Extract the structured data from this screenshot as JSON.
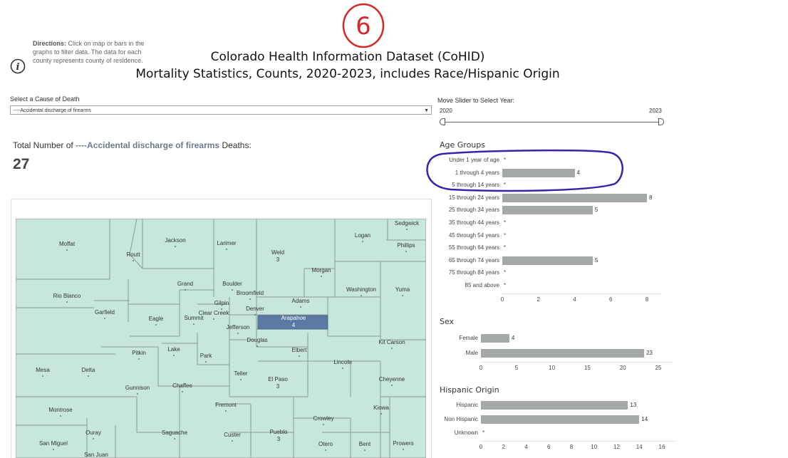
{
  "annotation": {
    "number": "6"
  },
  "directions": {
    "bold": "Directions:",
    "text": " Click on map or bars in the graphs to filter data. The data for each county represents county of residence."
  },
  "header": {
    "title_line1": "Colorado Health Information Dataset (CoHID)",
    "title_line2": "Mortality Statistics, Counts, 2020-2023, includes Race/Hispanic Origin"
  },
  "cause_filter": {
    "label": "Select a Cause of Death",
    "value": "----Accidental discharge of firearms"
  },
  "year_slider": {
    "label": "Move Slider to Select Year:",
    "min": "2020",
    "max": "2023"
  },
  "total": {
    "prefix": "Total Number of ",
    "cause": "----Accidental discharge of firearms",
    "suffix": " Deaths:",
    "count": "27"
  },
  "map": {
    "highlighted_county": "Arapahoe",
    "counties": [
      {
        "name": "Moffat",
        "value": ""
      },
      {
        "name": "Routt",
        "value": ""
      },
      {
        "name": "Jackson",
        "value": ""
      },
      {
        "name": "Larimer",
        "value": ""
      },
      {
        "name": "Weld",
        "value": "3"
      },
      {
        "name": "Logan",
        "value": ""
      },
      {
        "name": "Sedgwick",
        "value": ""
      },
      {
        "name": "Phillips",
        "value": ""
      },
      {
        "name": "Morgan",
        "value": ""
      },
      {
        "name": "Rio Blanco",
        "value": ""
      },
      {
        "name": "Grand",
        "value": ""
      },
      {
        "name": "Boulder",
        "value": ""
      },
      {
        "name": "Broomfield",
        "value": ""
      },
      {
        "name": "Washington",
        "value": ""
      },
      {
        "name": "Yuma",
        "value": ""
      },
      {
        "name": "Adams",
        "value": ""
      },
      {
        "name": "Gilpin",
        "value": ""
      },
      {
        "name": "Denver",
        "value": ""
      },
      {
        "name": "Garfield",
        "value": ""
      },
      {
        "name": "Eagle",
        "value": ""
      },
      {
        "name": "Summit",
        "value": ""
      },
      {
        "name": "Clear Creek",
        "value": ""
      },
      {
        "name": "Arapahoe",
        "value": "4"
      },
      {
        "name": "Jefferson",
        "value": ""
      },
      {
        "name": "Douglas",
        "value": ""
      },
      {
        "name": "Elbert",
        "value": ""
      },
      {
        "name": "Kit Carson",
        "value": ""
      },
      {
        "name": "Pitkin",
        "value": ""
      },
      {
        "name": "Lake",
        "value": ""
      },
      {
        "name": "Park",
        "value": ""
      },
      {
        "name": "Lincoln",
        "value": ""
      },
      {
        "name": "Mesa",
        "value": ""
      },
      {
        "name": "Delta",
        "value": ""
      },
      {
        "name": "Teller",
        "value": ""
      },
      {
        "name": "El Paso",
        "value": "3"
      },
      {
        "name": "Cheyenne",
        "value": ""
      },
      {
        "name": "Gunnison",
        "value": ""
      },
      {
        "name": "Chaffee",
        "value": ""
      },
      {
        "name": "Fremont",
        "value": ""
      },
      {
        "name": "Kiowa",
        "value": ""
      },
      {
        "name": "Montrose",
        "value": ""
      },
      {
        "name": "Crowley",
        "value": ""
      },
      {
        "name": "Ouray",
        "value": ""
      },
      {
        "name": "Saguache",
        "value": ""
      },
      {
        "name": "Custer",
        "value": ""
      },
      {
        "name": "Pueblo",
        "value": "3"
      },
      {
        "name": "San Miguel",
        "value": ""
      },
      {
        "name": "San Juan",
        "value": ""
      },
      {
        "name": "Otero",
        "value": ""
      },
      {
        "name": "Bent",
        "value": ""
      },
      {
        "name": "Prowers",
        "value": ""
      }
    ]
  },
  "age_groups": {
    "title": "Age Groups",
    "ticks": [
      "0",
      "2",
      "4",
      "6",
      "8"
    ],
    "rows": [
      {
        "label": "Under 1 year of age",
        "value": null,
        "display": "*"
      },
      {
        "label": "1 through 4 years",
        "value": 4,
        "display": "4"
      },
      {
        "label": "5 through 14 years",
        "value": null,
        "display": "*"
      },
      {
        "label": "15 through 24 years",
        "value": 8,
        "display": "8"
      },
      {
        "label": "25 through 34 years",
        "value": 5,
        "display": "5"
      },
      {
        "label": "35 through 44 years",
        "value": null,
        "display": "*"
      },
      {
        "label": "45 through 54 years",
        "value": null,
        "display": "*"
      },
      {
        "label": "55 through 64 years",
        "value": null,
        "display": "*"
      },
      {
        "label": "65 through 74 years",
        "value": 5,
        "display": "5"
      },
      {
        "label": "75 through 84 years",
        "value": null,
        "display": "*"
      },
      {
        "label": "85 and above",
        "value": null,
        "display": "*"
      }
    ]
  },
  "sex": {
    "title": "Sex",
    "ticks": [
      "0",
      "5",
      "10",
      "15",
      "20",
      "25"
    ],
    "rows": [
      {
        "label": "Female",
        "value": 4,
        "display": "4"
      },
      {
        "label": "Male",
        "value": 23,
        "display": "23"
      }
    ]
  },
  "hispanic_origin": {
    "title": "Hispanic Origin",
    "ticks": [
      "0",
      "2",
      "4",
      "6",
      "8",
      "10",
      "12",
      "14",
      "16"
    ],
    "rows": [
      {
        "label": "Hispanic",
        "value": 13,
        "display": "13"
      },
      {
        "label": "Non Hispanic",
        "value": 14,
        "display": "14"
      },
      {
        "label": "Unknown",
        "value": null,
        "display": "*"
      }
    ]
  },
  "colors": {
    "map_fill": "#c7e6dc",
    "map_border": "#8a9a96",
    "highlight": "#5a7aa3",
    "bar": "#a5a8a9",
    "annotation_red": "#d62828",
    "annotation_purple": "#3d1fa8"
  }
}
